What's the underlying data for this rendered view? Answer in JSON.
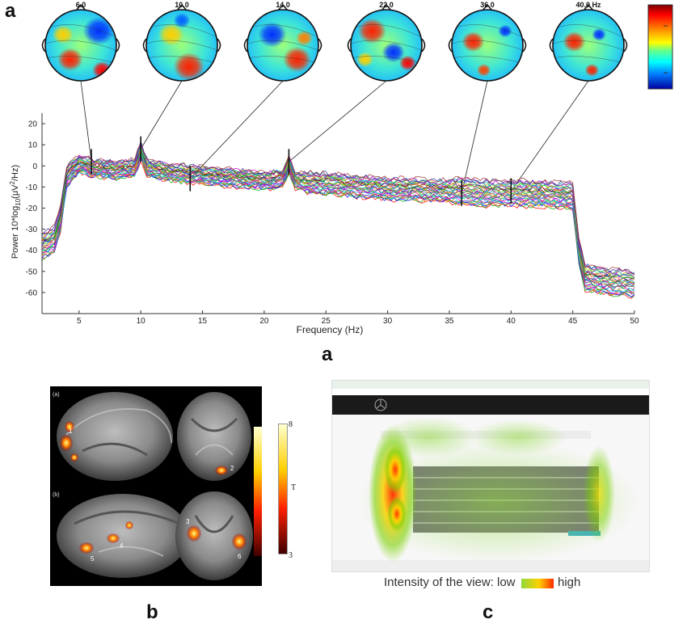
{
  "panel_labels": {
    "a_top": "a",
    "a_bottom": "a",
    "b": "b",
    "c": "c"
  },
  "chart_data": {
    "type": "line",
    "xlabel": "Frequency (Hz)",
    "ylabel_parts": {
      "base": "Power 10*log",
      "sub": "10",
      "open": "(",
      "mu": "μ",
      "unit": "V",
      "sup": "2",
      "tail": "/Hz)"
    },
    "xlim": [
      2,
      50
    ],
    "ylim": [
      -70,
      25
    ],
    "xticks": [
      5,
      10,
      15,
      20,
      25,
      30,
      35,
      40,
      45,
      50
    ],
    "yticks": [
      20,
      10,
      0,
      -10,
      -20,
      -30,
      -40,
      -50,
      -60
    ],
    "grid": false,
    "series_count": 30,
    "envelope": {
      "x": [
        2,
        3,
        3.5,
        4,
        5,
        6,
        8,
        9.5,
        10,
        10.5,
        12,
        14,
        16,
        18,
        20,
        21.5,
        22,
        22.5,
        24,
        26,
        28,
        30,
        32,
        34,
        36,
        38,
        40,
        42,
        44,
        45,
        45.5,
        46,
        48,
        50
      ],
      "mean": [
        -38,
        -35,
        -25,
        -5,
        1,
        -1,
        -2,
        -1,
        7,
        -1,
        -3,
        -4,
        -5,
        -6,
        -7,
        -6,
        1,
        -7,
        -8,
        -9,
        -10,
        -11,
        -11,
        -12,
        -12,
        -13,
        -13,
        -13,
        -14,
        -14,
        -40,
        -53,
        -55,
        -56
      ],
      "spread": [
        6,
        6,
        6,
        5,
        4,
        4,
        4,
        4,
        4,
        4,
        4,
        4,
        4,
        4,
        4,
        4,
        4,
        4,
        5,
        5,
        5,
        5,
        5,
        5,
        6,
        6,
        6,
        6,
        6,
        6,
        6,
        6,
        6,
        6
      ]
    },
    "topo_frequencies": [
      {
        "label": "6.0",
        "hz": 6,
        "y": 2
      },
      {
        "label": "10.0",
        "hz": 10,
        "y": 8
      },
      {
        "label": "14.0",
        "hz": 14,
        "y": -6
      },
      {
        "label": "22.0",
        "hz": 22,
        "y": 2
      },
      {
        "label": "36.0",
        "hz": 36,
        "y": -13
      },
      {
        "label": "40.0 Hz",
        "hz": 40,
        "y": -12
      }
    ],
    "colormap": [
      "#7f0000",
      "#ff0000",
      "#ff8000",
      "#ffff00",
      "#80ff80",
      "#00ffff",
      "#0080ff",
      "#0000ff",
      "#00007f"
    ]
  },
  "panel_b": {
    "label_a": "(a)",
    "label_b": "(b)",
    "scale": {
      "max": "8",
      "mid": "T",
      "min": "3"
    },
    "region_labels": [
      "1",
      "2",
      "3",
      "4",
      "5",
      "6"
    ]
  },
  "panel_c": {
    "legend_label": "Intensity of the view:",
    "low": "low",
    "high": "high"
  }
}
